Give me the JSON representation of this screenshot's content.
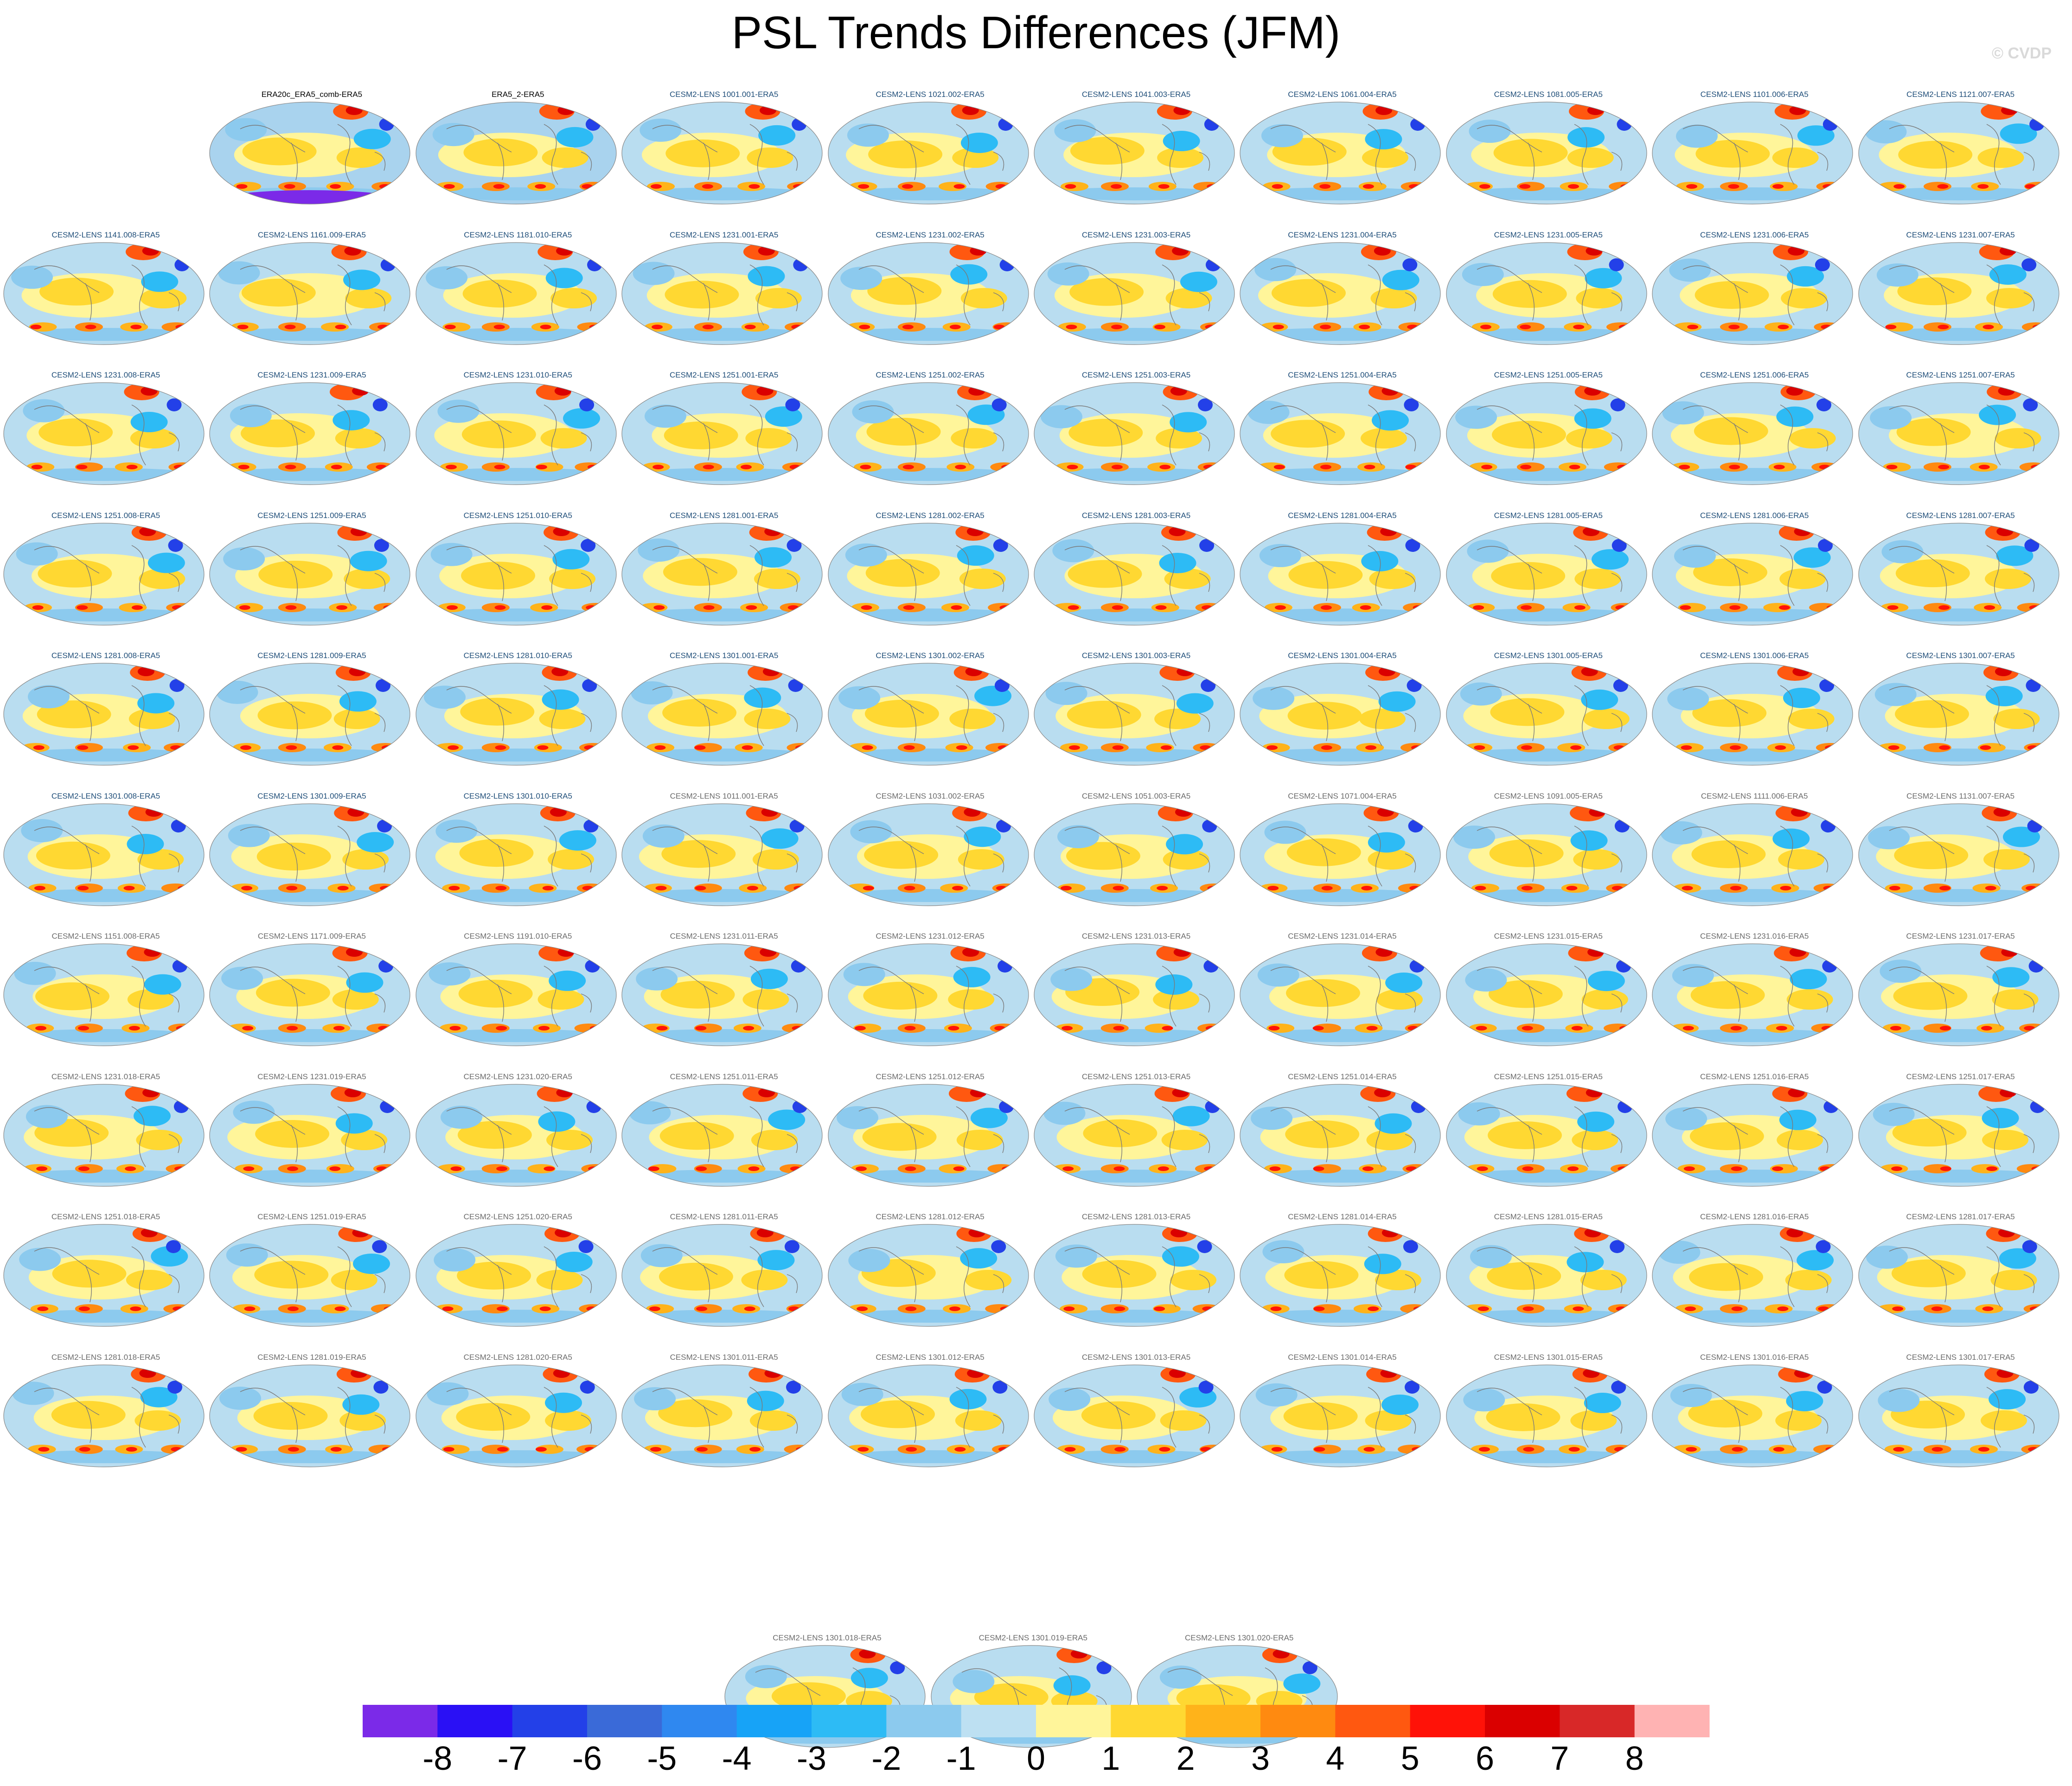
{
  "title": "PSL Trends Differences (JFM)",
  "credit": "© CVDP",
  "colors": {
    "label_obs": "#000000",
    "label_primary": "#1f4e79",
    "label_secondary": "#6b6b6b",
    "ocean_base": "#b9ddf0",
    "coast": "#7a7a7a"
  },
  "panels": [
    {
      "label": "ERA20c_ERA5_comb-ERA5",
      "style": "obs"
    },
    {
      "label": "ERA5_2-ERA5",
      "style": "obs"
    },
    {
      "label": "CESM2-LENS 1001.001-ERA5",
      "style": "primary"
    },
    {
      "label": "CESM2-LENS 1021.002-ERA5",
      "style": "primary"
    },
    {
      "label": "CESM2-LENS 1041.003-ERA5",
      "style": "primary"
    },
    {
      "label": "CESM2-LENS 1061.004-ERA5",
      "style": "primary"
    },
    {
      "label": "CESM2-LENS 1081.005-ERA5",
      "style": "primary"
    },
    {
      "label": "CESM2-LENS 1101.006-ERA5",
      "style": "primary"
    },
    {
      "label": "CESM2-LENS 1121.007-ERA5",
      "style": "primary"
    },
    {
      "label": "CESM2-LENS 1141.008-ERA5",
      "style": "primary"
    },
    {
      "label": "CESM2-LENS 1161.009-ERA5",
      "style": "primary"
    },
    {
      "label": "CESM2-LENS 1181.010-ERA5",
      "style": "primary"
    },
    {
      "label": "CESM2-LENS 1231.001-ERA5",
      "style": "primary"
    },
    {
      "label": "CESM2-LENS 1231.002-ERA5",
      "style": "primary"
    },
    {
      "label": "CESM2-LENS 1231.003-ERA5",
      "style": "primary"
    },
    {
      "label": "CESM2-LENS 1231.004-ERA5",
      "style": "primary"
    },
    {
      "label": "CESM2-LENS 1231.005-ERA5",
      "style": "primary"
    },
    {
      "label": "CESM2-LENS 1231.006-ERA5",
      "style": "primary"
    },
    {
      "label": "CESM2-LENS 1231.007-ERA5",
      "style": "primary"
    },
    {
      "label": "CESM2-LENS 1231.008-ERA5",
      "style": "primary"
    },
    {
      "label": "CESM2-LENS 1231.009-ERA5",
      "style": "primary"
    },
    {
      "label": "CESM2-LENS 1231.010-ERA5",
      "style": "primary"
    },
    {
      "label": "CESM2-LENS 1251.001-ERA5",
      "style": "primary"
    },
    {
      "label": "CESM2-LENS 1251.002-ERA5",
      "style": "primary"
    },
    {
      "label": "CESM2-LENS 1251.003-ERA5",
      "style": "primary"
    },
    {
      "label": "CESM2-LENS 1251.004-ERA5",
      "style": "primary"
    },
    {
      "label": "CESM2-LENS 1251.005-ERA5",
      "style": "primary"
    },
    {
      "label": "CESM2-LENS 1251.006-ERA5",
      "style": "primary"
    },
    {
      "label": "CESM2-LENS 1251.007-ERA5",
      "style": "primary"
    },
    {
      "label": "CESM2-LENS 1251.008-ERA5",
      "style": "primary"
    },
    {
      "label": "CESM2-LENS 1251.009-ERA5",
      "style": "primary"
    },
    {
      "label": "CESM2-LENS 1251.010-ERA5",
      "style": "primary"
    },
    {
      "label": "CESM2-LENS 1281.001-ERA5",
      "style": "primary"
    },
    {
      "label": "CESM2-LENS 1281.002-ERA5",
      "style": "primary"
    },
    {
      "label": "CESM2-LENS 1281.003-ERA5",
      "style": "primary"
    },
    {
      "label": "CESM2-LENS 1281.004-ERA5",
      "style": "primary"
    },
    {
      "label": "CESM2-LENS 1281.005-ERA5",
      "style": "primary"
    },
    {
      "label": "CESM2-LENS 1281.006-ERA5",
      "style": "primary"
    },
    {
      "label": "CESM2-LENS 1281.007-ERA5",
      "style": "primary"
    },
    {
      "label": "CESM2-LENS 1281.008-ERA5",
      "style": "primary"
    },
    {
      "label": "CESM2-LENS 1281.009-ERA5",
      "style": "primary"
    },
    {
      "label": "CESM2-LENS 1281.010-ERA5",
      "style": "primary"
    },
    {
      "label": "CESM2-LENS 1301.001-ERA5",
      "style": "primary"
    },
    {
      "label": "CESM2-LENS 1301.002-ERA5",
      "style": "primary"
    },
    {
      "label": "CESM2-LENS 1301.003-ERA5",
      "style": "primary"
    },
    {
      "label": "CESM2-LENS 1301.004-ERA5",
      "style": "primary"
    },
    {
      "label": "CESM2-LENS 1301.005-ERA5",
      "style": "primary"
    },
    {
      "label": "CESM2-LENS 1301.006-ERA5",
      "style": "primary"
    },
    {
      "label": "CESM2-LENS 1301.007-ERA5",
      "style": "primary"
    },
    {
      "label": "CESM2-LENS 1301.008-ERA5",
      "style": "primary"
    },
    {
      "label": "CESM2-LENS 1301.009-ERA5",
      "style": "primary"
    },
    {
      "label": "CESM2-LENS 1301.010-ERA5",
      "style": "primary"
    },
    {
      "label": "CESM2-LENS 1011.001-ERA5",
      "style": "secondary"
    },
    {
      "label": "CESM2-LENS 1031.002-ERA5",
      "style": "secondary"
    },
    {
      "label": "CESM2-LENS 1051.003-ERA5",
      "style": "secondary"
    },
    {
      "label": "CESM2-LENS 1071.004-ERA5",
      "style": "secondary"
    },
    {
      "label": "CESM2-LENS 1091.005-ERA5",
      "style": "secondary"
    },
    {
      "label": "CESM2-LENS 1111.006-ERA5",
      "style": "secondary"
    },
    {
      "label": "CESM2-LENS 1131.007-ERA5",
      "style": "secondary"
    },
    {
      "label": "CESM2-LENS 1151.008-ERA5",
      "style": "secondary"
    },
    {
      "label": "CESM2-LENS 1171.009-ERA5",
      "style": "secondary"
    },
    {
      "label": "CESM2-LENS 1191.010-ERA5",
      "style": "secondary"
    },
    {
      "label": "CESM2-LENS 1231.011-ERA5",
      "style": "secondary"
    },
    {
      "label": "CESM2-LENS 1231.012-ERA5",
      "style": "secondary"
    },
    {
      "label": "CESM2-LENS 1231.013-ERA5",
      "style": "secondary"
    },
    {
      "label": "CESM2-LENS 1231.014-ERA5",
      "style": "secondary"
    },
    {
      "label": "CESM2-LENS 1231.015-ERA5",
      "style": "secondary"
    },
    {
      "label": "CESM2-LENS 1231.016-ERA5",
      "style": "secondary"
    },
    {
      "label": "CESM2-LENS 1231.017-ERA5",
      "style": "secondary"
    },
    {
      "label": "CESM2-LENS 1231.018-ERA5",
      "style": "secondary"
    },
    {
      "label": "CESM2-LENS 1231.019-ERA5",
      "style": "secondary"
    },
    {
      "label": "CESM2-LENS 1231.020-ERA5",
      "style": "secondary"
    },
    {
      "label": "CESM2-LENS 1251.011-ERA5",
      "style": "secondary"
    },
    {
      "label": "CESM2-LENS 1251.012-ERA5",
      "style": "secondary"
    },
    {
      "label": "CESM2-LENS 1251.013-ERA5",
      "style": "secondary"
    },
    {
      "label": "CESM2-LENS 1251.014-ERA5",
      "style": "secondary"
    },
    {
      "label": "CESM2-LENS 1251.015-ERA5",
      "style": "secondary"
    },
    {
      "label": "CESM2-LENS 1251.016-ERA5",
      "style": "secondary"
    },
    {
      "label": "CESM2-LENS 1251.017-ERA5",
      "style": "secondary"
    },
    {
      "label": "CESM2-LENS 1251.018-ERA5",
      "style": "secondary"
    },
    {
      "label": "CESM2-LENS 1251.019-ERA5",
      "style": "secondary"
    },
    {
      "label": "CESM2-LENS 1251.020-ERA5",
      "style": "secondary"
    },
    {
      "label": "CESM2-LENS 1281.011-ERA5",
      "style": "secondary"
    },
    {
      "label": "CESM2-LENS 1281.012-ERA5",
      "style": "secondary"
    },
    {
      "label": "CESM2-LENS 1281.013-ERA5",
      "style": "secondary"
    },
    {
      "label": "CESM2-LENS 1281.014-ERA5",
      "style": "secondary"
    },
    {
      "label": "CESM2-LENS 1281.015-ERA5",
      "style": "secondary"
    },
    {
      "label": "CESM2-LENS 1281.016-ERA5",
      "style": "secondary"
    },
    {
      "label": "CESM2-LENS 1281.017-ERA5",
      "style": "secondary"
    },
    {
      "label": "CESM2-LENS 1281.018-ERA5",
      "style": "secondary"
    },
    {
      "label": "CESM2-LENS 1281.019-ERA5",
      "style": "secondary"
    },
    {
      "label": "CESM2-LENS 1281.020-ERA5",
      "style": "secondary"
    },
    {
      "label": "CESM2-LENS 1301.011-ERA5",
      "style": "secondary"
    },
    {
      "label": "CESM2-LENS 1301.012-ERA5",
      "style": "secondary"
    },
    {
      "label": "CESM2-LENS 1301.013-ERA5",
      "style": "secondary"
    },
    {
      "label": "CESM2-LENS 1301.014-ERA5",
      "style": "secondary"
    },
    {
      "label": "CESM2-LENS 1301.015-ERA5",
      "style": "secondary"
    },
    {
      "label": "CESM2-LENS 1301.016-ERA5",
      "style": "secondary"
    },
    {
      "label": "CESM2-LENS 1301.017-ERA5",
      "style": "secondary"
    },
    {
      "label": "CESM2-LENS 1301.018-ERA5",
      "style": "secondary"
    },
    {
      "label": "CESM2-LENS 1301.019-ERA5",
      "style": "secondary"
    },
    {
      "label": "CESM2-LENS 1301.020-ERA5",
      "style": "secondary"
    }
  ],
  "chart_data": {
    "type": "heatmap",
    "title": "PSL Trends Differences (JFM)",
    "projection": "global map panels (one per member minus ERA5)",
    "panel_count": 102,
    "colorbar": {
      "orientation": "horizontal",
      "labels": [
        "-8",
        "-7",
        "-6",
        "-5",
        "-4",
        "-3",
        "-2",
        "-1",
        "0",
        "1",
        "2",
        "3",
        "4",
        "5",
        "6",
        "7",
        "8"
      ],
      "levels": [
        -8,
        -7,
        -6,
        -5,
        -4,
        -3,
        -2,
        -1,
        0,
        1,
        2,
        3,
        4,
        5,
        6,
        7,
        8
      ],
      "colors": [
        "#7b2ae8",
        "#2a10f5",
        "#2340e8",
        "#3a6ad8",
        "#2f88f0",
        "#17a3f7",
        "#2dbbf5",
        "#8ccaee",
        "#bde0f2",
        "#fff59a",
        "#ffd832",
        "#ffb31a",
        "#ff8a10",
        "#ff5810",
        "#ff1208",
        "#da0000",
        "#d82828",
        "#ffb3b3"
      ]
    }
  }
}
